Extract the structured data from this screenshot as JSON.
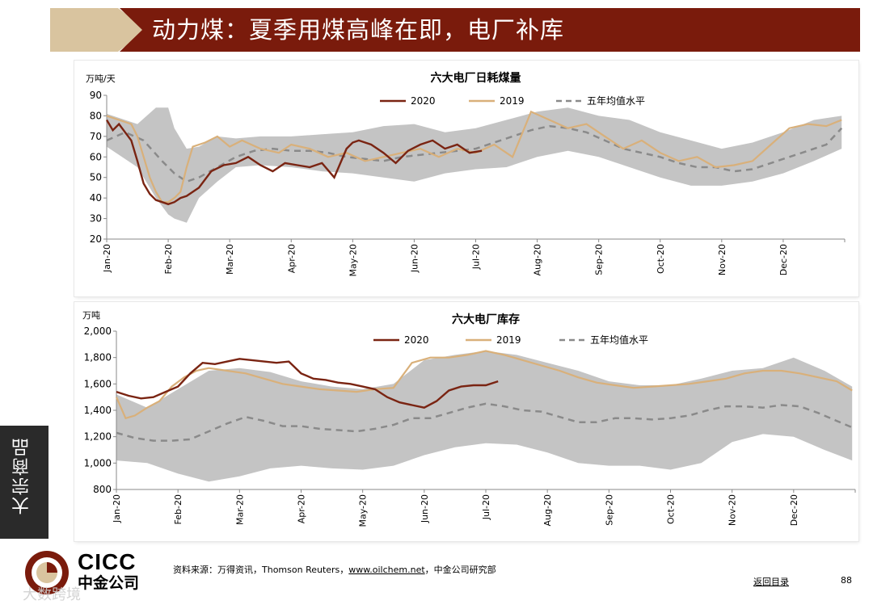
{
  "header": {
    "title": "动力煤：夏季用煤高峰在即，电厂补库",
    "accent_color": "#7a1b0c",
    "tan_color": "#d9c49f"
  },
  "side_tab": {
    "label": "大宗商品"
  },
  "footer": {
    "logo_en": "CICC",
    "logo_cn": "中金公司",
    "source_prefix": "资料来源：万得资讯，Thomson Reuters，",
    "source_link": "www.oilchem.net",
    "source_suffix": "，中金公司研究部",
    "back_link": "返回目录",
    "page_number": "88",
    "watermark": "大数跨境"
  },
  "chart_data": [
    {
      "type": "line",
      "title": "六大电厂日耗煤量",
      "ylabel": "万吨/天",
      "ylim": [
        20,
        90
      ],
      "yticks": [
        "20",
        "30",
        "40",
        "50",
        "60",
        "70",
        "80",
        "90"
      ],
      "x_month_labels": [
        "Jan-20",
        "Feb-20",
        "Mar-20",
        "Apr-20",
        "May-20",
        "Jun-20",
        "Jul-20",
        "Aug-20",
        "Sep-20",
        "Oct-20",
        "Nov-20",
        "Dec-20"
      ],
      "legend": [
        "2020",
        "2019",
        "五年均值水平"
      ],
      "colors": {
        "y2020": "#7a2412",
        "y2019": "#d9b07a",
        "avg": "#8a8a8a",
        "band": "#c4c4c4"
      },
      "series": [
        {
          "name": "2020",
          "x": [
            0,
            0.1,
            0.2,
            0.3,
            0.4,
            0.5,
            0.6,
            0.7,
            0.8,
            0.9,
            1.0,
            1.1,
            1.2,
            1.3,
            1.5,
            1.7,
            1.9,
            2.1,
            2.3,
            2.5,
            2.7,
            2.9,
            3.1,
            3.3,
            3.5,
            3.7,
            3.9,
            4.0,
            4.1,
            4.3,
            4.5,
            4.7,
            4.9,
            5.1,
            5.3,
            5.5,
            5.7,
            5.9,
            6.1
          ],
          "values": [
            78,
            73,
            76,
            72,
            68,
            58,
            47,
            42,
            39,
            38,
            37,
            38,
            40,
            41,
            45,
            53,
            56,
            57,
            60,
            56,
            53,
            57,
            56,
            55,
            57,
            50,
            64,
            67,
            68,
            66,
            62,
            57,
            63,
            66,
            68,
            64,
            66,
            62,
            63
          ]
        },
        {
          "name": "2019",
          "x": [
            0,
            0.2,
            0.4,
            0.5,
            0.6,
            0.7,
            0.8,
            0.9,
            1.0,
            1.1,
            1.2,
            1.3,
            1.4,
            1.6,
            1.8,
            2.0,
            2.2,
            2.5,
            2.8,
            3.0,
            3.3,
            3.6,
            3.9,
            4.2,
            4.5,
            4.8,
            5.1,
            5.4,
            5.7,
            6.0,
            6.3,
            6.6,
            6.9,
            7.2,
            7.5,
            7.8,
            8.1,
            8.4,
            8.7,
            9.0,
            9.3,
            9.6,
            9.9,
            10.2,
            10.5,
            10.8,
            11.1,
            11.4,
            11.7,
            11.95
          ],
          "values": [
            80,
            78,
            76,
            70,
            60,
            50,
            43,
            38,
            38,
            40,
            43,
            55,
            65,
            67,
            70,
            65,
            68,
            64,
            62,
            66,
            64,
            60,
            62,
            58,
            60,
            62,
            64,
            60,
            64,
            62,
            66,
            60,
            82,
            78,
            74,
            76,
            70,
            64,
            68,
            62,
            58,
            60,
            55,
            56,
            58,
            66,
            74,
            76,
            75,
            78
          ]
        },
        {
          "name": "五年均值水平",
          "x": [
            0,
            0.3,
            0.6,
            0.9,
            1.1,
            1.3,
            1.5,
            1.8,
            2.1,
            2.4,
            2.7,
            3.0,
            3.3,
            3.6,
            3.9,
            4.2,
            4.5,
            4.8,
            5.1,
            5.4,
            5.7,
            6.0,
            6.3,
            6.6,
            6.9,
            7.2,
            7.5,
            7.8,
            8.1,
            8.4,
            8.7,
            9.0,
            9.3,
            9.6,
            9.9,
            10.2,
            10.5,
            10.8,
            11.1,
            11.4,
            11.7,
            11.95
          ],
          "values": [
            68,
            72,
            68,
            58,
            52,
            48,
            50,
            55,
            60,
            63,
            64,
            63,
            63,
            62,
            60,
            59,
            58,
            60,
            61,
            62,
            63,
            64,
            67,
            70,
            73,
            75,
            74,
            72,
            68,
            64,
            62,
            60,
            57,
            55,
            55,
            53,
            54,
            57,
            60,
            63,
            66,
            74
          ]
        },
        {
          "name": "band_upper",
          "x": [
            0,
            0.5,
            0.8,
            1.0,
            1.1,
            1.3,
            1.5,
            1.8,
            2.1,
            2.5,
            3.0,
            3.5,
            4.0,
            4.5,
            5.0,
            5.5,
            6.0,
            6.5,
            7.0,
            7.5,
            8.0,
            8.5,
            9.0,
            9.5,
            10.0,
            10.5,
            11.0,
            11.5,
            11.95
          ],
          "values": [
            81,
            76,
            84,
            84,
            74,
            64,
            65,
            70,
            69,
            70,
            70,
            71,
            72,
            75,
            76,
            72,
            74,
            78,
            82,
            84,
            80,
            78,
            72,
            68,
            64,
            67,
            72,
            78,
            80
          ]
        },
        {
          "name": "band_lower",
          "x": [
            0,
            0.5,
            0.8,
            1.0,
            1.1,
            1.3,
            1.5,
            1.8,
            2.1,
            2.5,
            3.0,
            3.5,
            4.0,
            4.5,
            5.0,
            5.5,
            6.0,
            6.5,
            7.0,
            7.5,
            8.0,
            8.5,
            9.0,
            9.5,
            10.0,
            10.5,
            11.0,
            11.5,
            11.95
          ],
          "values": [
            65,
            55,
            40,
            32,
            30,
            28,
            40,
            48,
            55,
            56,
            55,
            53,
            52,
            50,
            48,
            52,
            54,
            55,
            60,
            63,
            60,
            55,
            50,
            46,
            46,
            48,
            52,
            58,
            64
          ]
        }
      ]
    },
    {
      "type": "line",
      "title": "六大电厂库存",
      "ylabel": "万吨",
      "ylim": [
        800,
        2000
      ],
      "yticks": [
        "800",
        "1,000",
        "1,200",
        "1,400",
        "1,600",
        "1,800",
        "2,000"
      ],
      "x_month_labels": [
        "Jan-20",
        "Feb-20",
        "Mar-20",
        "Apr-20",
        "May-20",
        "Jun-20",
        "Jul-20",
        "Aug-20",
        "Sep-20",
        "Oct-20",
        "Nov-20",
        "Dec-20"
      ],
      "legend": [
        "2020",
        "2019",
        "五年均值水平"
      ],
      "colors": {
        "y2020": "#7a2412",
        "y2019": "#d9b07a",
        "avg": "#8a8a8a",
        "band": "#c4c4c4"
      },
      "series": [
        {
          "name": "2020",
          "x": [
            0,
            0.2,
            0.4,
            0.6,
            0.8,
            1.0,
            1.2,
            1.4,
            1.6,
            1.8,
            2.0,
            2.2,
            2.4,
            2.6,
            2.8,
            3.0,
            3.2,
            3.4,
            3.6,
            3.8,
            4.0,
            4.2,
            4.4,
            4.6,
            4.8,
            5.0,
            5.2,
            5.4,
            5.6,
            5.8,
            6.0,
            6.2
          ],
          "values": [
            1540,
            1510,
            1490,
            1500,
            1540,
            1580,
            1680,
            1760,
            1750,
            1770,
            1790,
            1780,
            1770,
            1760,
            1770,
            1680,
            1640,
            1630,
            1610,
            1600,
            1580,
            1560,
            1500,
            1460,
            1440,
            1420,
            1470,
            1550,
            1580,
            1590,
            1590,
            1620
          ]
        },
        {
          "name": "2019",
          "x": [
            0,
            0.15,
            0.3,
            0.5,
            0.7,
            0.9,
            1.1,
            1.3,
            1.5,
            1.8,
            2.1,
            2.4,
            2.7,
            3.0,
            3.3,
            3.6,
            3.9,
            4.2,
            4.5,
            4.8,
            5.1,
            5.4,
            5.7,
            6.0,
            6.3,
            6.6,
            6.9,
            7.2,
            7.5,
            7.8,
            8.1,
            8.4,
            8.7,
            9.0,
            9.3,
            9.6,
            9.9,
            10.2,
            10.5,
            10.8,
            11.1,
            11.4,
            11.7,
            11.95
          ],
          "values": [
            1500,
            1340,
            1360,
            1420,
            1470,
            1580,
            1650,
            1700,
            1720,
            1700,
            1680,
            1640,
            1600,
            1580,
            1560,
            1550,
            1540,
            1560,
            1570,
            1760,
            1800,
            1800,
            1820,
            1850,
            1820,
            1780,
            1740,
            1700,
            1650,
            1610,
            1590,
            1570,
            1580,
            1590,
            1600,
            1620,
            1640,
            1680,
            1700,
            1700,
            1680,
            1650,
            1620,
            1550
          ]
        },
        {
          "name": "五年均值水平",
          "x": [
            0,
            0.3,
            0.6,
            0.9,
            1.2,
            1.5,
            1.8,
            2.1,
            2.4,
            2.7,
            3.0,
            3.3,
            3.6,
            3.9,
            4.2,
            4.5,
            4.8,
            5.1,
            5.4,
            5.7,
            6.0,
            6.3,
            6.6,
            6.9,
            7.2,
            7.5,
            7.8,
            8.1,
            8.4,
            8.7,
            9.0,
            9.3,
            9.6,
            9.9,
            10.2,
            10.5,
            10.8,
            11.1,
            11.4,
            11.7,
            11.95
          ],
          "values": [
            1230,
            1190,
            1170,
            1170,
            1180,
            1240,
            1300,
            1350,
            1320,
            1280,
            1280,
            1260,
            1250,
            1240,
            1260,
            1290,
            1340,
            1340,
            1380,
            1420,
            1450,
            1430,
            1400,
            1390,
            1350,
            1310,
            1310,
            1340,
            1340,
            1330,
            1340,
            1360,
            1400,
            1430,
            1430,
            1420,
            1440,
            1430,
            1380,
            1320,
            1270
          ]
        },
        {
          "name": "band_upper",
          "x": [
            0,
            0.5,
            1.0,
            1.5,
            2.0,
            2.5,
            3.0,
            3.5,
            4.0,
            4.5,
            5.0,
            5.5,
            6.0,
            6.5,
            7.0,
            7.5,
            8.0,
            8.5,
            9.0,
            9.5,
            10.0,
            10.5,
            11.0,
            11.5,
            11.95
          ],
          "values": [
            1520,
            1420,
            1560,
            1700,
            1720,
            1690,
            1620,
            1580,
            1560,
            1600,
            1780,
            1820,
            1850,
            1820,
            1760,
            1700,
            1620,
            1590,
            1590,
            1640,
            1700,
            1720,
            1800,
            1700,
            1580
          ]
        },
        {
          "name": "band_lower",
          "x": [
            0,
            0.5,
            1.0,
            1.5,
            2.0,
            2.5,
            3.0,
            3.5,
            4.0,
            4.5,
            5.0,
            5.5,
            6.0,
            6.5,
            7.0,
            7.5,
            8.0,
            8.5,
            9.0,
            9.5,
            10.0,
            10.5,
            11.0,
            11.5,
            11.95
          ],
          "values": [
            1020,
            1000,
            920,
            860,
            900,
            960,
            980,
            960,
            950,
            980,
            1060,
            1120,
            1150,
            1140,
            1080,
            1000,
            980,
            980,
            950,
            1000,
            1160,
            1220,
            1200,
            1100,
            1020
          ]
        }
      ]
    }
  ]
}
